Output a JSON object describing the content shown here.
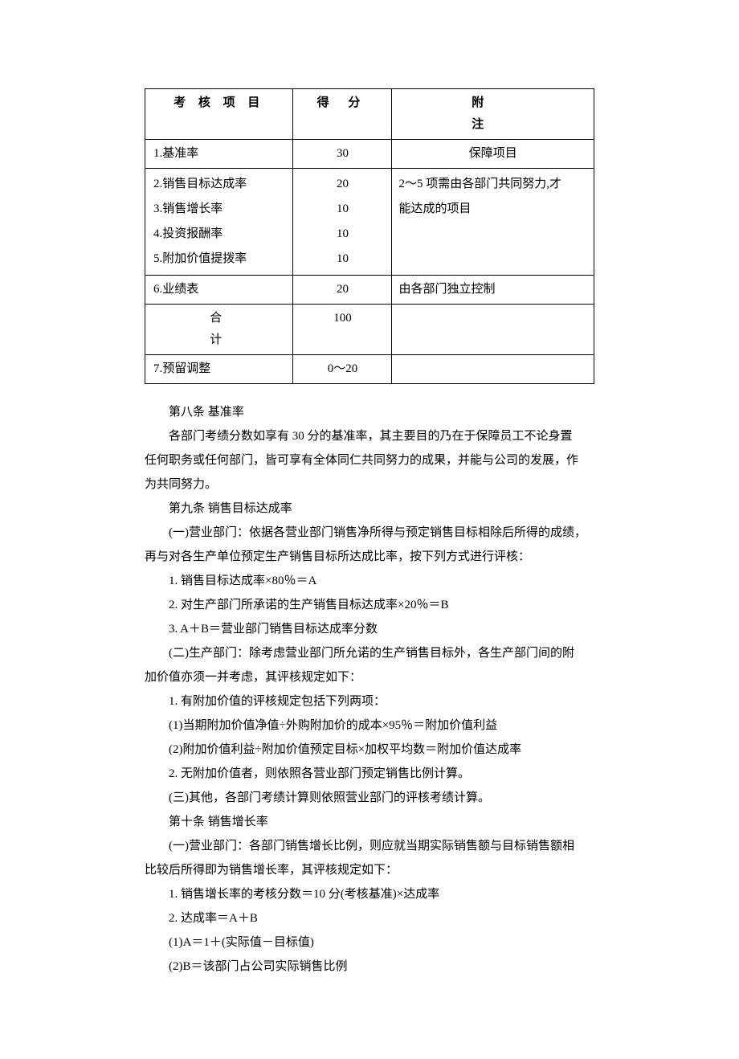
{
  "table": {
    "headers": {
      "item": "考 核 项 目",
      "score": "得  分",
      "note": "附        注"
    },
    "row1": {
      "item": "1.基准率",
      "score": "30",
      "note": "保障项目"
    },
    "group": {
      "items": [
        "2.销售目标达成率",
        "3.销售增长率",
        "4.投资报酬率",
        "5.附加价值提拨率"
      ],
      "scores": [
        "20",
        "10",
        "10",
        "10"
      ],
      "note_line1": "2～5 项需由各部门共同努力,才",
      "note_line2": "能达成的项目"
    },
    "row6": {
      "item": "6.业绩表",
      "score": "20",
      "note": "由各部门独立控制"
    },
    "total": {
      "item": "合    计",
      "score": "100",
      "note": ""
    },
    "row7": {
      "item": "7.预留调整",
      "score": "0～20",
      "note": ""
    }
  },
  "body": {
    "a8_title": "第八条  基准率",
    "a8_p1": "各部门考绩分数如享有 30 分的基准率，其主要目的乃在于保障员工不论身置",
    "a8_p2": "任何职务或任何部门，皆可享有全体同仁共同努力的成果，并能与公司的发展，作",
    "a8_p3": "为共同努力。",
    "a9_title": "第九条  销售目标达成率",
    "a9_1a": "(一)营业部门：依据各营业部门销售净所得与预定销售目标相除后所得的成绩，",
    "a9_1b": "再与对各生产单位预定生产销售目标所达成比率，按下列方式进行评核：",
    "a9_list1": "1. 销售目标达成率×80％＝A",
    "a9_list2": "2. 对生产部门所承诺的生产销售目标达成率×20％＝B",
    "a9_list3": "3. A＋B＝营业部门销售目标达成率分数",
    "a9_2a": "(二)生产部门：除考虑营业部门所允诺的生产销售目标外，各生产部门间的附",
    "a9_2b": "加价值亦须一并考虑，其评核规定如下：",
    "a9_2_1": "1. 有附加价值的评核规定包括下列两项：",
    "a9_2_1_1": "(1)当期附加价值净值÷外购附加价的成本×95％＝附加价值利益",
    "a9_2_1_2": "(2)附加价值利益÷附加价值预定目标×加权平均数＝附加价值达成率",
    "a9_2_2": "2. 无附加价值者，则依照各营业部门预定销售比例计算。",
    "a9_3": "(三)其他，各部门考绩计算则依照营业部门的评核考绩计算。",
    "a10_title": "第十条  销售增长率",
    "a10_1a": "(一)营业部门：各部门销售增长比例，则应就当期实际销售额与目标销售额相",
    "a10_1b": "比较后所得即为销售增长率，其评核规定如下：",
    "a10_l1": "1. 销售增长率的考核分数＝10 分(考核基准)×达成率",
    "a10_l2": "2. 达成率＝A＋B",
    "a10_l3": "(1)A＝1＋(实际值－目标值)",
    "a10_l4": "(2)B＝该部门占公司实际销售比例"
  }
}
